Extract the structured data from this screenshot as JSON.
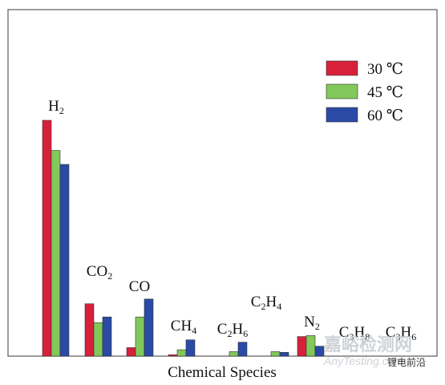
{
  "chart_data": {
    "type": "bar",
    "title": "",
    "xlabel": "Chemical Species",
    "ylabel": "",
    "ylim": [
      0,
      100
    ],
    "grid": false,
    "legend_position": "top-right",
    "categories": [
      {
        "base": "H",
        "sub": "2",
        "parts": [
          [
            "H",
            ""
          ],
          [
            "2",
            "sub"
          ]
        ]
      },
      {
        "base": "CO",
        "sub": "2",
        "parts": [
          [
            "CO",
            ""
          ],
          [
            "2",
            "sub"
          ]
        ]
      },
      {
        "base": "CO",
        "sub": "",
        "parts": [
          [
            "CO",
            ""
          ]
        ]
      },
      {
        "base": "CH",
        "sub": "4",
        "parts": [
          [
            "CH",
            ""
          ],
          [
            "4",
            "sub"
          ]
        ]
      },
      {
        "base": "C2H6",
        "sub": "",
        "parts": [
          [
            "C",
            ""
          ],
          [
            "2",
            "sub"
          ],
          [
            "H",
            ""
          ],
          [
            "6",
            "sub"
          ]
        ]
      },
      {
        "base": "C2H4",
        "sub": "",
        "parts": [
          [
            "C",
            ""
          ],
          [
            "2",
            "sub"
          ],
          [
            "H",
            ""
          ],
          [
            "4",
            "sub"
          ]
        ]
      },
      {
        "base": "N",
        "sub": "2",
        "parts": [
          [
            "N",
            ""
          ],
          [
            "2",
            "sub"
          ]
        ]
      },
      {
        "base": "C3H8",
        "sub": "",
        "parts": [
          [
            "C",
            ""
          ],
          [
            "3",
            "sub"
          ],
          [
            "H",
            ""
          ],
          [
            "8",
            "sub"
          ]
        ]
      },
      {
        "base": "C3H6",
        "sub": "",
        "parts": [
          [
            "C",
            ""
          ],
          [
            "3",
            "sub"
          ],
          [
            "H",
            ""
          ],
          [
            "6",
            "sub"
          ]
        ]
      }
    ],
    "series": [
      {
        "name": "30 ℃",
        "color": "#d8203a",
        "values": [
          100,
          22.2,
          3.6,
          0.6,
          0,
          0,
          8.3,
          0,
          0
        ]
      },
      {
        "name": "45 ℃",
        "color": "#82c85a",
        "values": [
          87.2,
          14.2,
          16.6,
          2.7,
          1.9,
          1.9,
          8.7,
          0,
          0
        ]
      },
      {
        "name": "60 ℃",
        "color": "#2a4aa6",
        "values": [
          81.3,
          16.6,
          24.2,
          6.9,
          5.9,
          1.6,
          4.2,
          0,
          0
        ]
      }
    ]
  },
  "watermark": {
    "line1": "嘉峪检测网",
    "line2": "AnyTesting.com",
    "tag": "锂电前沿"
  }
}
